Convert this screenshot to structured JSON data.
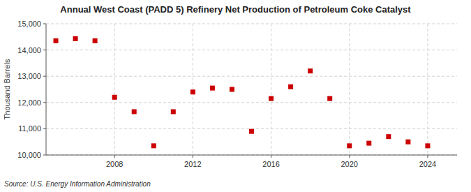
{
  "chart_data": {
    "type": "scatter",
    "title": "Annual West Coast (PADD 5) Refinery Net Production of Petroleum Coke Catalyst",
    "y_label": "Thousand Barrels",
    "source": "Source: U.S. Energy Information Administration",
    "x": [
      2005,
      2006,
      2007,
      2008,
      2009,
      2010,
      2011,
      2012,
      2013,
      2014,
      2015,
      2016,
      2017,
      2018,
      2019,
      2020,
      2021,
      2022,
      2023,
      2024
    ],
    "values": [
      14350,
      14430,
      14350,
      12200,
      11650,
      10350,
      11650,
      12400,
      12550,
      12500,
      10900,
      12150,
      12600,
      13200,
      12150,
      10350,
      10450,
      10700,
      10500,
      10350
    ],
    "color": "#cc0000",
    "marker": "square",
    "xlim": [
      2004.5,
      2025.5
    ],
    "xticks": [
      2008,
      2012,
      2016,
      2020,
      2024
    ],
    "ylim": [
      10000,
      15000
    ],
    "yticks": [
      {
        "value": 10000,
        "label": "10,000"
      },
      {
        "value": 11000,
        "label": "11,000"
      },
      {
        "value": 12000,
        "label": "12,000"
      },
      {
        "value": 13000,
        "label": "13,000"
      },
      {
        "value": 14000,
        "label": "14,000"
      },
      {
        "value": 15000,
        "label": "15,000"
      }
    ],
    "grid": true
  }
}
